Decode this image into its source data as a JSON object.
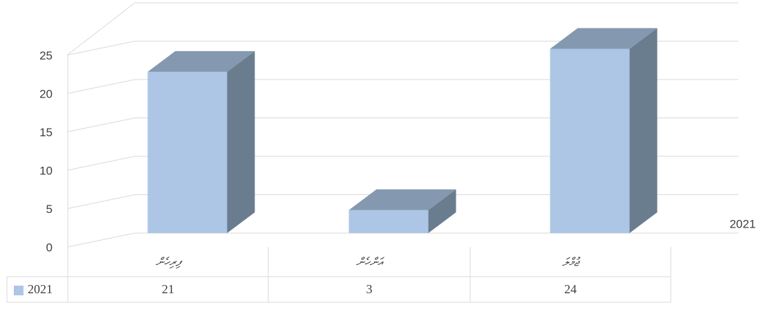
{
  "chart_data": {
    "type": "bar3d",
    "categories": [
      "ފިރިހެން",
      "އަންހެން",
      "ޖުމްލަ"
    ],
    "series": [
      {
        "name": "2021",
        "color": "#adc6e6",
        "values": [
          21,
          3,
          24
        ]
      }
    ],
    "depth_categories": [
      "2021"
    ],
    "ylim": [
      0,
      30
    ],
    "yticks": [
      0,
      5,
      10,
      15,
      20,
      25
    ],
    "grid": true,
    "data_table": true
  }
}
